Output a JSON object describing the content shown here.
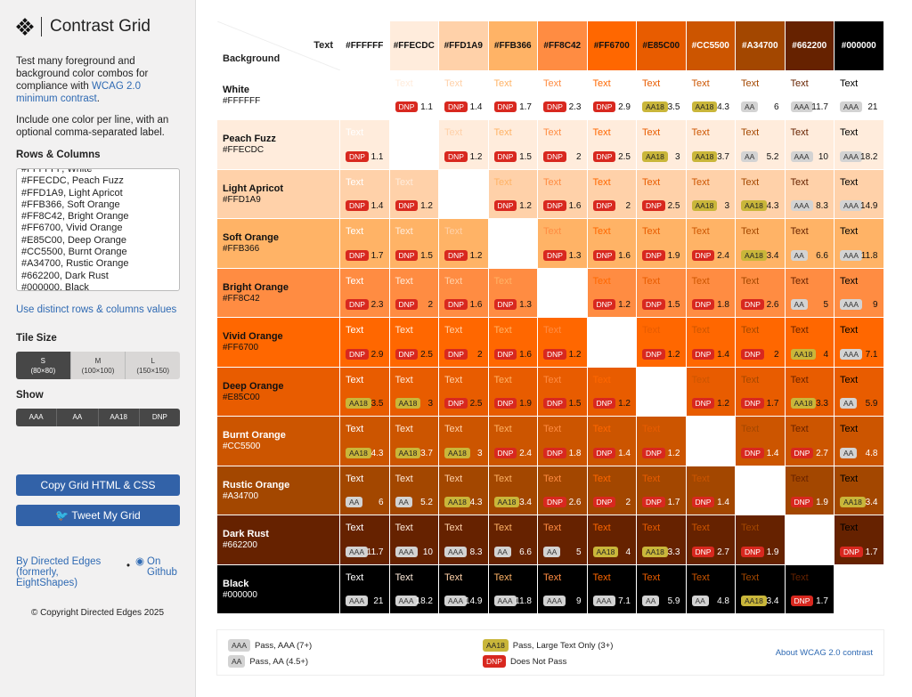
{
  "sidebar": {
    "title": "Contrast Grid",
    "intro": "Test many foreground and background color combos for compliance with ",
    "intro_link": "WCAG 2.0 minimum contrast",
    "intro_end": ".",
    "instructions": "Include one color per line, with an optional comma-separated label.",
    "rows_label": "Rows & Columns",
    "rows_value": "#FFFFFF, White\n#FFECDC, Peach Fuzz\n#FFD1A9, Light Apricot\n#FFB366, Soft Orange\n#FF8C42, Bright Orange\n#FF6700, Vivid Orange\n#E85C00, Deep Orange\n#CC5500, Burnt Orange\n#A34700, Rustic Orange\n#662200, Dark Rust\n#000000, Black",
    "distinct_link": "Use distinct rows & columns values",
    "tile_label": "Tile Size",
    "tiles": [
      {
        "name": "S",
        "size": "(80×80)",
        "selected": true
      },
      {
        "name": "M",
        "size": "(100×100)",
        "selected": false
      },
      {
        "name": "L",
        "size": "(150×150)",
        "selected": false
      }
    ],
    "show_label": "Show",
    "show": [
      "AAA",
      "AA",
      "AA18",
      "DNP"
    ],
    "copy_button": "Copy Grid HTML & CSS",
    "tweet_button": "Tweet My Grid",
    "by_link": "By Directed Edges (formerly, EightShapes)",
    "github_link": "On Github",
    "copyright": "© Copyright Directed Edges 2025"
  },
  "grid": {
    "corner_text": "Text",
    "corner_background": "Background",
    "cell_text": "Text",
    "colors": [
      {
        "hex": "#FFFFFF",
        "label": "White",
        "ink": "#111111"
      },
      {
        "hex": "#FFECDC",
        "label": "Peach Fuzz",
        "ink": "#111111"
      },
      {
        "hex": "#FFD1A9",
        "label": "Light Apricot",
        "ink": "#111111"
      },
      {
        "hex": "#FFB366",
        "label": "Soft Orange",
        "ink": "#111111"
      },
      {
        "hex": "#FF8C42",
        "label": "Bright Orange",
        "ink": "#111111"
      },
      {
        "hex": "#FF6700",
        "label": "Vivid Orange",
        "ink": "#111111"
      },
      {
        "hex": "#E85C00",
        "label": "Deep Orange",
        "ink": "#111111"
      },
      {
        "hex": "#CC5500",
        "label": "Burnt Orange",
        "ink": "#FFFFFF"
      },
      {
        "hex": "#A34700",
        "label": "Rustic Orange",
        "ink": "#FFFFFF"
      },
      {
        "hex": "#662200",
        "label": "Dark Rust",
        "ink": "#FFFFFF"
      },
      {
        "hex": "#000000",
        "label": "Black",
        "ink": "#FFFFFF"
      }
    ],
    "ratios": [
      [
        null,
        1.1,
        1.4,
        1.7,
        2.3,
        2.9,
        3.5,
        4.3,
        6,
        11.7,
        21
      ],
      [
        1.1,
        null,
        1.2,
        1.5,
        2,
        2.5,
        3,
        3.7,
        5.2,
        10,
        18.2
      ],
      [
        1.4,
        1.2,
        null,
        1.2,
        1.6,
        2,
        2.5,
        3,
        4.3,
        8.3,
        14.9
      ],
      [
        1.7,
        1.5,
        1.2,
        null,
        1.3,
        1.6,
        1.9,
        2.4,
        3.4,
        6.6,
        11.8
      ],
      [
        2.3,
        2,
        1.6,
        1.3,
        null,
        1.2,
        1.5,
        1.8,
        2.6,
        5,
        9
      ],
      [
        2.9,
        2.5,
        2,
        1.6,
        1.2,
        null,
        1.2,
        1.4,
        2,
        4,
        7.1
      ],
      [
        3.5,
        3,
        2.5,
        1.9,
        1.5,
        1.2,
        null,
        1.2,
        1.7,
        3.3,
        5.9
      ],
      [
        4.3,
        3.7,
        3,
        2.4,
        1.8,
        1.4,
        1.2,
        null,
        1.4,
        2.7,
        4.8
      ],
      [
        6,
        5.2,
        4.3,
        3.4,
        2.6,
        2,
        1.7,
        1.4,
        null,
        1.9,
        3.4
      ],
      [
        11.7,
        10,
        8.3,
        6.6,
        5,
        4,
        3.3,
        2.7,
        1.9,
        null,
        1.7
      ],
      [
        21,
        18.2,
        14.9,
        11.8,
        9,
        7.1,
        5.9,
        4.8,
        3.4,
        1.7,
        null
      ]
    ],
    "levels": [
      [
        null,
        "DNP",
        "DNP",
        "DNP",
        "DNP",
        "DNP",
        "AA18",
        "AA18",
        "AA",
        "AAA",
        "AAA"
      ],
      [
        "DNP",
        null,
        "DNP",
        "DNP",
        "DNP",
        "DNP",
        "AA18",
        "AA18",
        "AA",
        "AAA",
        "AAA"
      ],
      [
        "DNP",
        "DNP",
        null,
        "DNP",
        "DNP",
        "DNP",
        "DNP",
        "AA18",
        "AA18",
        "AAA",
        "AAA"
      ],
      [
        "DNP",
        "DNP",
        "DNP",
        null,
        "DNP",
        "DNP",
        "DNP",
        "DNP",
        "AA18",
        "AA",
        "AAA"
      ],
      [
        "DNP",
        "DNP",
        "DNP",
        "DNP",
        null,
        "DNP",
        "DNP",
        "DNP",
        "DNP",
        "AA",
        "AAA"
      ],
      [
        "DNP",
        "DNP",
        "DNP",
        "DNP",
        "DNP",
        null,
        "DNP",
        "DNP",
        "DNP",
        "AA18",
        "AAA"
      ],
      [
        "AA18",
        "AA18",
        "DNP",
        "DNP",
        "DNP",
        "DNP",
        null,
        "DNP",
        "DNP",
        "AA18",
        "AA"
      ],
      [
        "AA18",
        "AA18",
        "AA18",
        "DNP",
        "DNP",
        "DNP",
        "DNP",
        null,
        "DNP",
        "DNP",
        "AA"
      ],
      [
        "AA",
        "AA",
        "AA18",
        "AA18",
        "DNP",
        "DNP",
        "DNP",
        "DNP",
        null,
        "DNP",
        "AA18"
      ],
      [
        "AAA",
        "AAA",
        "AAA",
        "AA",
        "AA",
        "AA18",
        "AA18",
        "DNP",
        "DNP",
        null,
        "DNP"
      ],
      [
        "AAA",
        "AAA",
        "AAA",
        "AAA",
        "AAA",
        "AAA",
        "AA",
        "AA",
        "AA18",
        "DNP",
        null
      ]
    ]
  },
  "legend": {
    "items": [
      {
        "badge": "AAA",
        "text": "Pass, AAA (7+)"
      },
      {
        "badge": "AA",
        "text": "Pass, AA (4.5+)"
      },
      {
        "badge": "AA18",
        "text": "Pass, Large Text Only (3+)"
      },
      {
        "badge": "DNP",
        "text": "Does Not Pass"
      }
    ],
    "about_link": "About WCAG 2.0 contrast"
  }
}
